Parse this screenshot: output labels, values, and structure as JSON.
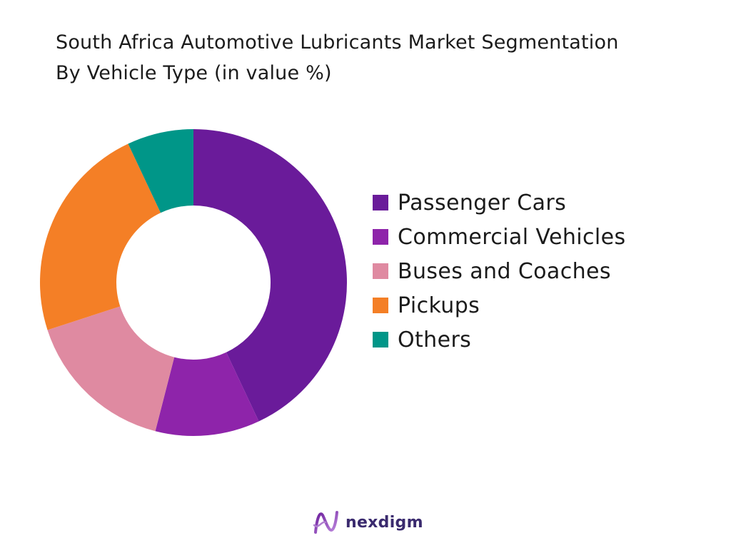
{
  "title": {
    "line1": "South Africa Automotive Lubricants Market Segmentation",
    "line2": "By Vehicle Type (in value %)"
  },
  "chart_data": {
    "type": "pie",
    "variant": "donut",
    "legend_position": "right",
    "slices": [
      {
        "label": "Passenger Cars",
        "value": 43,
        "color": "#6a1b9a"
      },
      {
        "label": "Commercial Vehicles",
        "value": 11,
        "color": "#8e24aa"
      },
      {
        "label": "Buses and Coaches",
        "value": 16,
        "color": "#df8aa1"
      },
      {
        "label": "Pickups",
        "value": 23,
        "color": "#f47f26"
      },
      {
        "label": "Others",
        "value": 7,
        "color": "#009688"
      }
    ]
  },
  "legend": {
    "items": [
      {
        "label": "Passenger Cars",
        "color": "#6a1b9a"
      },
      {
        "label": "Commercial Vehicles",
        "color": "#8e24aa"
      },
      {
        "label": "Buses and Coaches",
        "color": "#df8aa1"
      },
      {
        "label": "Pickups",
        "color": "#f47f26"
      },
      {
        "label": "Others",
        "color": "#009688"
      }
    ]
  },
  "footer": {
    "brand": "nexdigm",
    "logo_icon": "nexdigm-logo-icon"
  }
}
